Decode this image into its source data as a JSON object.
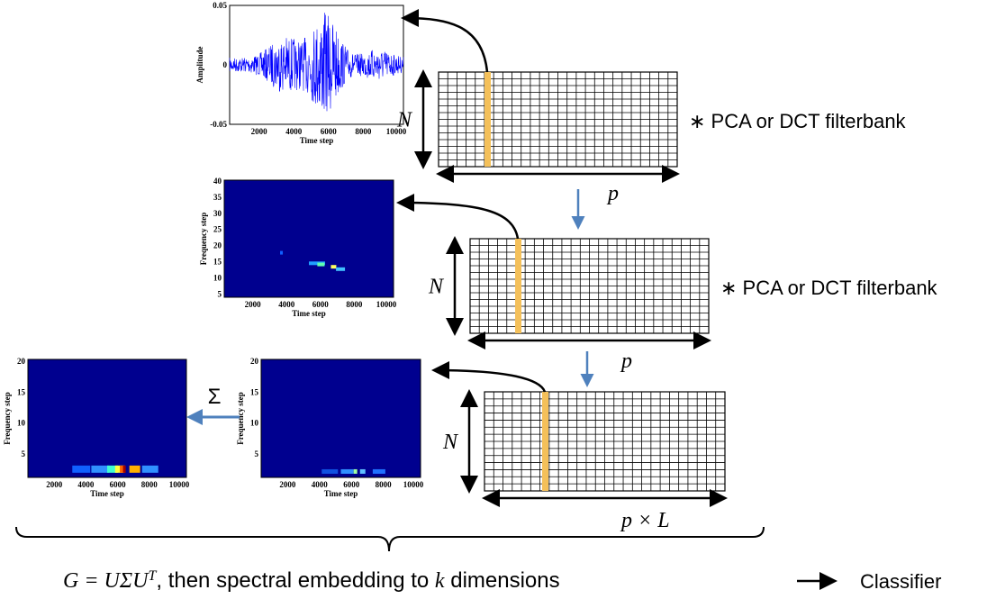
{
  "panels": [
    {
      "y_label": "Amplitude",
      "x_label": "Time step",
      "y_ticks": [
        "0.05",
        "0",
        "-0.05"
      ],
      "x_ticks": [
        "2000",
        "4000",
        "6000",
        "8000",
        "10000"
      ]
    },
    {
      "y_label": "Frequency step",
      "x_label": "Time step",
      "y_ticks": [
        "40",
        "35",
        "30",
        "25",
        "20",
        "15",
        "10",
        "5"
      ],
      "x_ticks": [
        "2000",
        "4000",
        "6000",
        "8000",
        "10000"
      ]
    },
    {
      "y_label": "Frequency step",
      "x_label": "Time step",
      "y_ticks": [
        "20",
        "15",
        "10",
        "5"
      ],
      "x_ticks": [
        "2000",
        "4000",
        "6000",
        "8000",
        "10000"
      ]
    },
    {
      "y_label": "Frequency step",
      "x_label": "Time step",
      "y_ticks": [
        "20",
        "15",
        "10",
        "5"
      ],
      "x_ticks": [
        "2000",
        "4000",
        "6000",
        "8000",
        "10000"
      ]
    }
  ],
  "matrices": [
    {
      "height_label": "N",
      "width_label": "p",
      "operation": "∗ PCA or DCT filterbank"
    },
    {
      "height_label": "N",
      "width_label": "p",
      "operation": "∗ PCA or DCT filterbank"
    },
    {
      "height_label": "N",
      "width_label": "p × L"
    }
  ],
  "sum_symbol": "Σ",
  "formula": {
    "lhs": "G = UΣU",
    "sup": "T",
    "text": ", then spectral embedding to ",
    "var": "k",
    "end": " dimensions"
  },
  "classifier": "Classifier"
}
